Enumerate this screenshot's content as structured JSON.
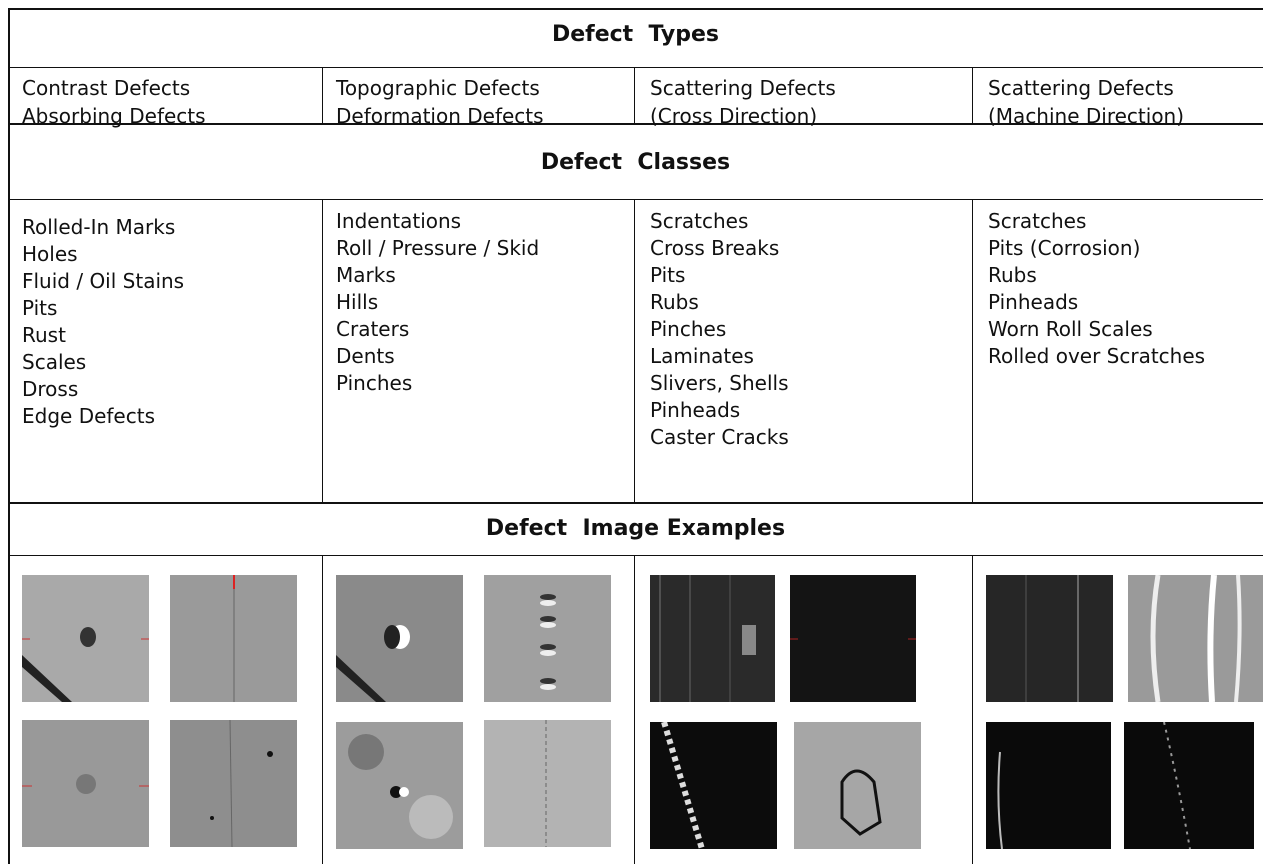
{
  "table": {
    "headers": [
      "Defect  Types",
      "Defect  Classes",
      "Defect  Image Examples"
    ],
    "types": [
      [
        "Contrast Defects",
        "Absorbing Defects"
      ],
      [
        "Topographic Defects",
        "Deformation Defects"
      ],
      [
        "Scattering Defects",
        "(Cross Direction)"
      ],
      [
        "Scattering Defects",
        "(Machine Direction)"
      ]
    ],
    "classes": [
      [
        "Rolled-In Marks",
        "Holes",
        "Fluid / Oil Stains",
        "Pits",
        "Rust",
        "Scales",
        "Dross",
        "Edge Defects"
      ],
      [
        "Indentations",
        "Roll / Pressure / Skid",
        "Marks",
        "Hills",
        "Craters",
        "Dents",
        "Pinches"
      ],
      [
        "Scratches",
        "Cross Breaks",
        "Pits",
        "Rubs",
        "Pinches",
        "Laminates",
        "Slivers, Shells",
        "Pinheads",
        "Caster Cracks"
      ],
      [
        "Scratches",
        "Pits (Corrosion)",
        "Rubs",
        "Pinheads",
        "Worn Roll Scales",
        "Rolled over Scratches"
      ]
    ]
  }
}
